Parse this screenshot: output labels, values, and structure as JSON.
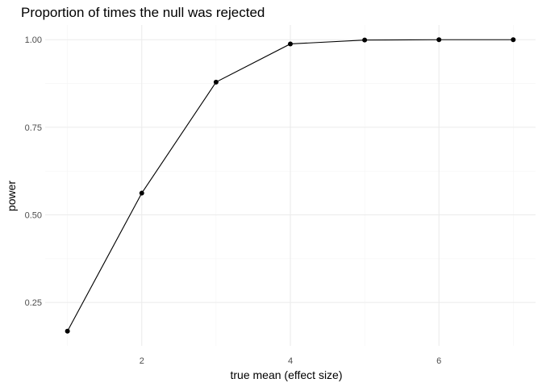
{
  "chart_data": {
    "type": "line",
    "title": "Proportion of times the null was rejected",
    "xlabel": "true mean (effect size)",
    "ylabel": "power",
    "x": [
      1,
      2,
      3,
      4,
      5,
      6,
      7
    ],
    "series": [
      {
        "name": "power",
        "values": [
          0.168,
          0.562,
          0.879,
          0.988,
          0.999,
          1.0,
          1.0
        ]
      }
    ],
    "xlim": [
      0.7,
      7.3
    ],
    "ylim": [
      0.126,
      1.042
    ],
    "xticks": [
      2,
      4,
      6
    ],
    "xtick_labels": [
      "2",
      "4",
      "6"
    ],
    "yticks": [
      0.25,
      0.5,
      0.75,
      1.0
    ],
    "ytick_labels": [
      "0.25",
      "0.50",
      "0.75",
      "1.00"
    ],
    "grid": true,
    "theme": "minimal",
    "colors": {
      "line": "#000000",
      "point": "#000000",
      "grid_major": "#ebebeb",
      "grid_minor": "#f4f4f4",
      "tick_text": "#4d4d4d"
    }
  }
}
